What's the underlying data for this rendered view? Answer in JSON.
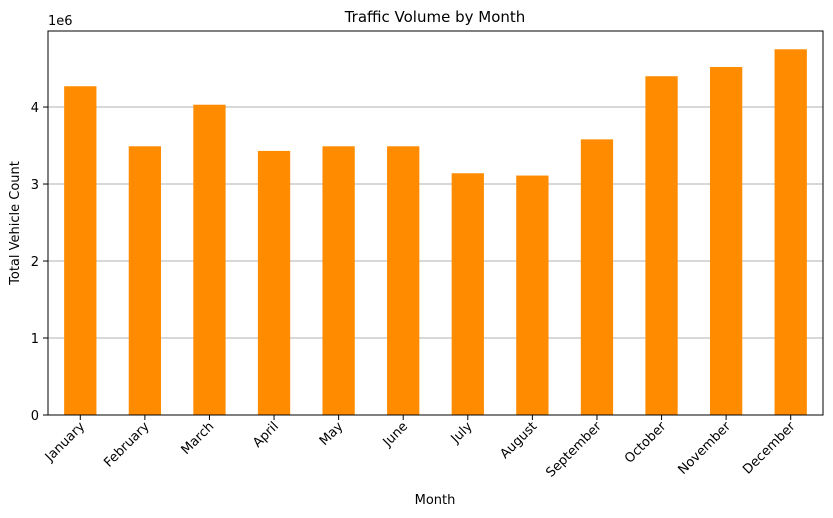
{
  "chart_data": {
    "type": "bar",
    "title": "Traffic Volume by Month",
    "xlabel": "Month",
    "ylabel": "Total Vehicle Count",
    "y_offset_label": "1e6",
    "categories": [
      "January",
      "February",
      "March",
      "April",
      "May",
      "June",
      "July",
      "August",
      "September",
      "October",
      "November",
      "December"
    ],
    "values": [
      4270000,
      3490000,
      4030000,
      3430000,
      3490000,
      3490000,
      3140000,
      3110000,
      3580000,
      4400000,
      4520000,
      4750000
    ],
    "yticks": [
      0,
      1,
      2,
      3,
      4
    ],
    "ytick_labels": [
      "0",
      "1",
      "2",
      "3",
      "4"
    ],
    "ylim": [
      0,
      4987500
    ],
    "grid": "y",
    "bar_color": "#ff8c00",
    "grid_color": "#b0b0b0"
  }
}
